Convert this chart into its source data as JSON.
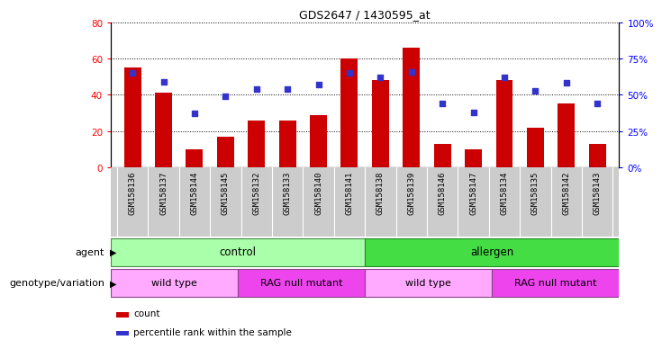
{
  "title": "GDS2647 / 1430595_at",
  "samples": [
    "GSM158136",
    "GSM158137",
    "GSM158144",
    "GSM158145",
    "GSM158132",
    "GSM158133",
    "GSM158140",
    "GSM158141",
    "GSM158138",
    "GSM158139",
    "GSM158146",
    "GSM158147",
    "GSM158134",
    "GSM158135",
    "GSM158142",
    "GSM158143"
  ],
  "counts": [
    55,
    41,
    10,
    17,
    26,
    26,
    29,
    60,
    48,
    66,
    13,
    10,
    48,
    22,
    35,
    13
  ],
  "percentiles": [
    65,
    59,
    37,
    49,
    54,
    54,
    57,
    65,
    62,
    66,
    44,
    38,
    62,
    53,
    58,
    44
  ],
  "ylim_left": [
    0,
    80
  ],
  "ylim_right": [
    0,
    100
  ],
  "yticks_left": [
    0,
    20,
    40,
    60,
    80
  ],
  "yticks_right": [
    0,
    25,
    50,
    75,
    100
  ],
  "bar_color": "#cc0000",
  "dot_color": "#3333cc",
  "agent_control_color": "#aaffaa",
  "agent_allergen_color": "#44dd44",
  "genotype_wild_color": "#ffaaff",
  "genotype_rag_color": "#ee44ee",
  "tick_bg_color": "#cccccc",
  "agent_label": "agent",
  "genotype_label": "genotype/variation",
  "legend_count": "count",
  "legend_percentile": "percentile rank within the sample",
  "control_label": "control",
  "allergen_label": "allergen",
  "wild_type_label": "wild type",
  "rag_label": "RAG null mutant"
}
